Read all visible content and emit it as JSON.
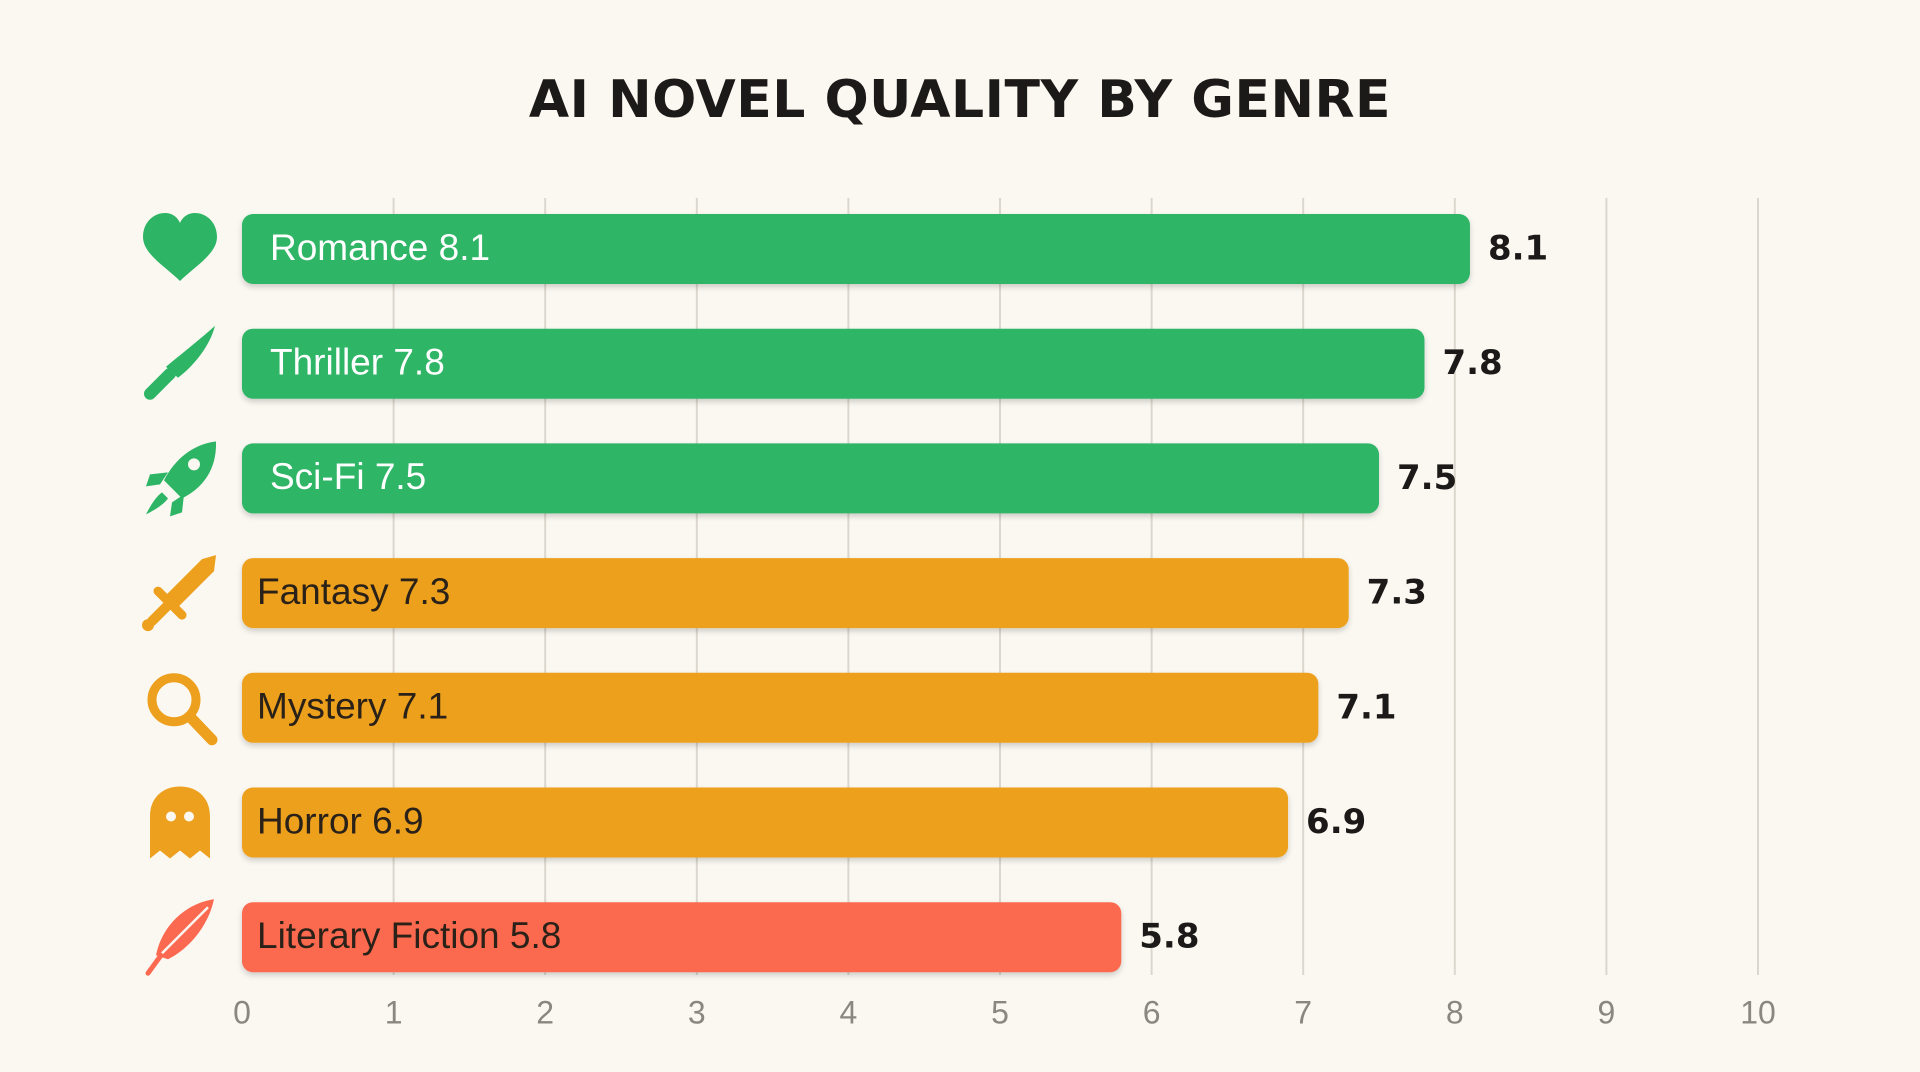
{
  "chart_data": {
    "type": "bar",
    "orientation": "horizontal",
    "title": "AI NOVEL QUALITY BY GENRE",
    "xlabel": "",
    "ylabel": "",
    "xlim": [
      0,
      10
    ],
    "xticks": [
      "0",
      "1",
      "2",
      "3",
      "4",
      "5",
      "6",
      "7",
      "8",
      "9",
      "10"
    ],
    "grid": "vertical",
    "categories": [
      "Romance",
      "Thriller",
      "Sci-Fi",
      "Fantasy",
      "Mystery",
      "Horror",
      "Literary Fiction"
    ],
    "values": [
      8.1,
      7.8,
      7.5,
      7.3,
      7.1,
      6.9,
      5.8
    ],
    "bar_labels": [
      "Romance 8.1",
      "Thriller 7.8",
      "Sci-Fi 7.5",
      "Fantasy 7.3",
      "Mystery 7.1",
      "Horror 6.9",
      "Literary Fiction 5.8"
    ],
    "value_labels": [
      "8.1",
      "7.8",
      "7.5",
      "7.3",
      "7.1",
      "6.9",
      "5.8"
    ],
    "icons": [
      "heart-icon",
      "knife-icon",
      "rocket-icon",
      "sword-icon",
      "magnifier-icon",
      "ghost-icon",
      "feather-icon"
    ],
    "bar_colors": [
      "#2db565",
      "#2db565",
      "#2db565",
      "#eda01e",
      "#eda01e",
      "#eda01e",
      "#fb6a50"
    ],
    "label_colors": [
      "#ffffff",
      "#ffffff",
      "#ffffff",
      "#2a2118",
      "#2a2118",
      "#2a2118",
      "#2a2118"
    ],
    "colors": {
      "background": "#fbf8f2",
      "grid": "#dcd7ce",
      "high": "#2db565",
      "mid": "#eda01e",
      "low": "#fb6a50"
    }
  }
}
